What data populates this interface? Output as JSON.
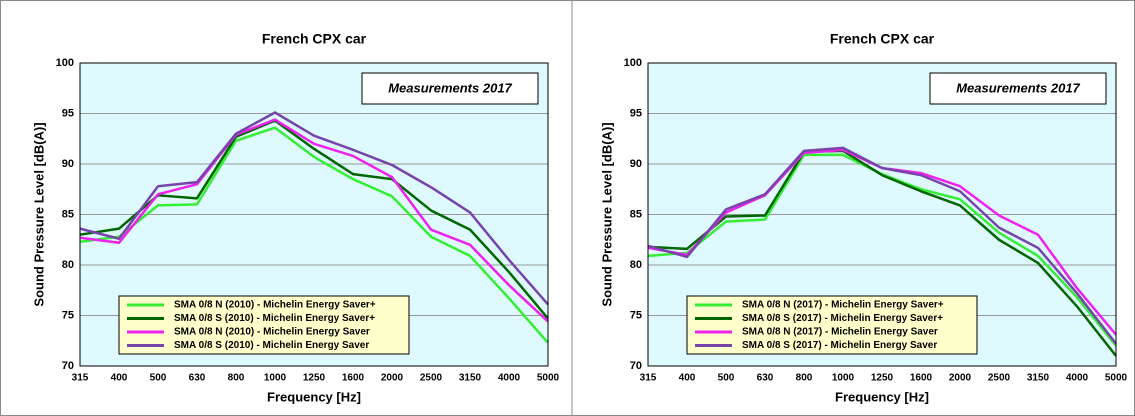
{
  "chart_data": [
    {
      "type": "line",
      "title": "French CPX car",
      "annotation": "Measurements 2017",
      "x_label": "Frequency  [Hz]",
      "y_label": "Sound Pressure Level  [dB(A)]",
      "categories": [
        "315",
        "400",
        "500",
        "630",
        "800",
        "1000",
        "1250",
        "1600",
        "2000",
        "2500",
        "3150",
        "4000",
        "5000"
      ],
      "ylim": [
        70,
        100
      ],
      "yticks": [
        70,
        75,
        80,
        85,
        90,
        95,
        100
      ],
      "grid": true,
      "legend_position": "lower center",
      "series": [
        {
          "name": "SMA 0/8 N (2010) - Michelin Energy Saver+",
          "color": "#33ee33",
          "values": [
            82.3,
            82.8,
            85.9,
            86.0,
            92.3,
            93.6,
            90.7,
            88.5,
            86.8,
            82.8,
            80.9,
            76.7,
            72.3
          ]
        },
        {
          "name": "SMA 0/8 S (2010) - Michelin Energy Saver+",
          "color": "#006600",
          "values": [
            83.0,
            83.6,
            86.9,
            86.6,
            92.7,
            94.3,
            91.5,
            89.0,
            88.5,
            85.4,
            83.5,
            79.3,
            74.7
          ]
        },
        {
          "name": "SMA 0/8 N (2010) - Michelin Energy Saver",
          "color": "#ee22ee",
          "values": [
            82.7,
            82.2,
            87.0,
            88.0,
            92.9,
            94.4,
            92.0,
            90.8,
            88.7,
            83.5,
            82.0,
            78.0,
            74.4
          ]
        },
        {
          "name": "SMA 0/8 S (2010) - Michelin Energy Saver",
          "color": "#7744aa",
          "values": [
            83.6,
            82.6,
            87.8,
            88.2,
            93.0,
            95.1,
            92.8,
            91.4,
            89.9,
            87.7,
            85.2,
            80.5,
            76.1
          ]
        }
      ]
    },
    {
      "type": "line",
      "title": "French CPX car",
      "annotation": "Measurements 2017",
      "x_label": "Frequency  [Hz]",
      "y_label": "Sound Pressure Level  [dB(A)]",
      "categories": [
        "315",
        "400",
        "500",
        "630",
        "800",
        "1000",
        "1250",
        "1600",
        "2000",
        "2500",
        "3150",
        "4000",
        "5000"
      ],
      "ylim": [
        70,
        100
      ],
      "yticks": [
        70,
        75,
        80,
        85,
        90,
        95,
        100
      ],
      "grid": true,
      "legend_position": "lower center",
      "series": [
        {
          "name": "SMA 0/8 N (2017) - Michelin Energy Saver+",
          "color": "#33ee33",
          "values": [
            80.9,
            81.2,
            84.3,
            84.5,
            90.9,
            90.9,
            89.0,
            87.5,
            86.5,
            83.2,
            80.9,
            76.8,
            72.0
          ]
        },
        {
          "name": "SMA 0/8 S (2017) - Michelin Energy Saver+",
          "color": "#006600",
          "values": [
            81.8,
            81.6,
            84.8,
            84.9,
            91.2,
            91.3,
            88.9,
            87.3,
            85.9,
            82.5,
            80.2,
            75.9,
            71.0
          ]
        },
        {
          "name": "SMA 0/8 N (2017) - Michelin Energy Saver",
          "color": "#ee22ee",
          "values": [
            81.7,
            81.0,
            85.2,
            86.9,
            91.1,
            91.4,
            89.6,
            89.1,
            87.8,
            84.9,
            83.0,
            77.7,
            73.1
          ]
        },
        {
          "name": "SMA 0/8 S (2017) - Michelin Energy Saver",
          "color": "#7744aa",
          "values": [
            81.9,
            80.8,
            85.5,
            87.0,
            91.3,
            91.6,
            89.6,
            88.9,
            87.3,
            83.7,
            81.7,
            77.2,
            72.2
          ]
        }
      ]
    }
  ]
}
